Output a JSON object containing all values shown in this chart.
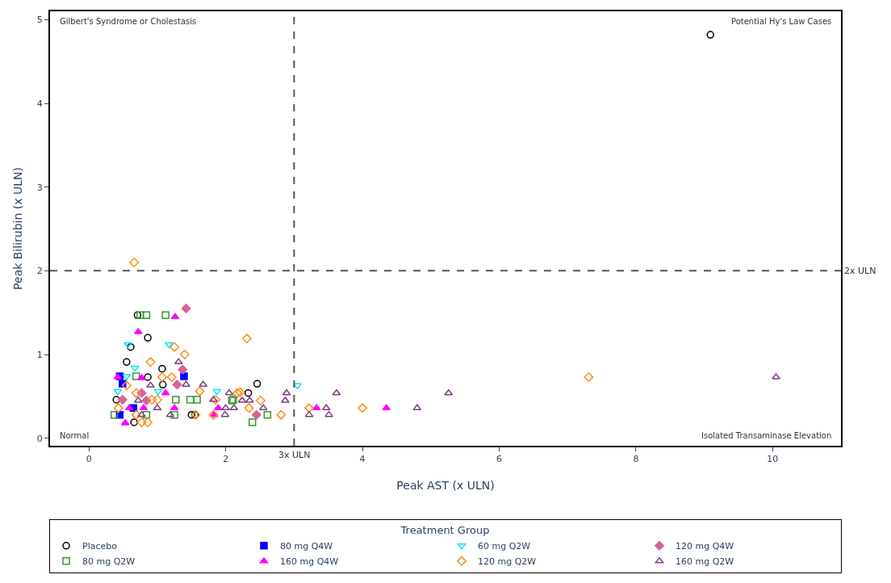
{
  "chart_data": {
    "type": "scatter",
    "xlabel": "Peak AST (x ULN)",
    "ylabel": "Peak Bilirubin (x ULN)",
    "legend_title": "Treatment Group",
    "xlim": [
      -0.57,
      11.0
    ],
    "xticks": [
      0,
      2,
      4,
      6,
      8,
      10
    ],
    "ylim": [
      -0.09,
      5.1
    ],
    "yticks": [
      0,
      1,
      2,
      3,
      4,
      5
    ],
    "legend": "bottom",
    "ref_lines": [
      {
        "axis": "x",
        "value": 3,
        "label": "3x ULN",
        "color": "#555555",
        "line_style": "dashed"
      },
      {
        "axis": "y",
        "value": 2,
        "label": "2x ULN",
        "color": "#555555",
        "line_style": "dashed"
      }
    ],
    "annotations": [
      "Gilbert's Syndrome or Cholestasis",
      "Potential Hy's Law Cases",
      "Normal",
      "Isolated Transaminase Elevation"
    ],
    "series": [
      {
        "name": "Placebo",
        "color": "#000000",
        "marker": "circle-open",
        "x": [
          9.09,
          0.71,
          0.86,
          0.61,
          0.55,
          1.07,
          0.86,
          1.08,
          0.4,
          1.5,
          0.66,
          2.46,
          2.33,
          1.55
        ],
        "values": [
          4.82,
          1.47,
          1.2,
          1.09,
          0.91,
          0.83,
          0.73,
          0.64,
          0.46,
          0.28,
          0.19,
          0.65,
          0.54,
          0.28
        ]
      },
      {
        "name": "80 mg Q4W",
        "color": "#0000ff",
        "marker": "square",
        "x": [
          1.39,
          0.49,
          0.45,
          0.45,
          0.65
        ],
        "values": [
          0.74,
          0.65,
          0.74,
          0.28,
          0.36
        ]
      },
      {
        "name": "60 mg Q2W",
        "color": "#00e5ee",
        "marker": "triangle-down-open",
        "x": [
          0.57,
          1.17,
          0.67,
          0.42,
          1.87,
          1.01,
          0.55,
          3.05
        ],
        "values": [
          1.12,
          1.12,
          0.84,
          0.56,
          0.56,
          0.56,
          0.74,
          0.63
        ]
      },
      {
        "name": "120 mg Q4W",
        "color": "#d9619a",
        "marker": "diamond",
        "x": [
          1.42,
          1.37,
          1.29,
          0.49,
          0.84,
          2.45,
          0.77
        ],
        "values": [
          1.55,
          0.82,
          0.64,
          0.46,
          0.45,
          0.28,
          0.54
        ]
      },
      {
        "name": "80 mg Q2W",
        "color": "#339933",
        "marker": "square-open",
        "x": [
          0.75,
          0.84,
          1.12,
          0.69,
          1.48,
          1.58,
          2.11,
          0.37,
          1.25,
          2.09,
          2.39,
          2.61,
          0.84,
          1.27
        ],
        "values": [
          1.47,
          1.47,
          1.47,
          0.74,
          0.46,
          0.46,
          0.46,
          0.28,
          0.28,
          0.45,
          0.19,
          0.28,
          0.28,
          0.46
        ]
      },
      {
        "name": "160 mg Q4W",
        "color": "#ff00ff",
        "marker": "triangle-up",
        "x": [
          1.26,
          0.72,
          0.42,
          0.77,
          1.12,
          0.53,
          0.8,
          1.25,
          1.83,
          1.89,
          0.59,
          3.33,
          4.35
        ],
        "values": [
          1.45,
          1.27,
          0.73,
          0.72,
          0.54,
          0.18,
          0.36,
          0.36,
          0.28,
          0.36,
          0.36,
          0.36,
          0.36
        ]
      },
      {
        "name": "120 mg Q2W",
        "color": "#ff8c1a",
        "marker": "diamond-open",
        "x": [
          0.66,
          2.31,
          1.25,
          1.4,
          0.9,
          1.07,
          1.21,
          0.55,
          0.69,
          1.62,
          2.17,
          1.85,
          0.43,
          1.0,
          0.92,
          0.69,
          0.86,
          1.56,
          0.77,
          1.82,
          2.21,
          2.51,
          2.34,
          2.81,
          3.22,
          4.0,
          7.31
        ],
        "values": [
          2.1,
          1.19,
          1.09,
          1.0,
          0.91,
          0.73,
          0.73,
          0.63,
          0.54,
          0.56,
          0.54,
          0.46,
          0.36,
          0.46,
          0.46,
          0.28,
          0.19,
          0.28,
          0.19,
          0.28,
          0.55,
          0.45,
          0.36,
          0.28,
          0.36,
          0.36,
          0.73
        ]
      },
      {
        "name": "160 mg Q2W",
        "color": "#7b3f7f",
        "marker": "triangle-up-open",
        "x": [
          1.31,
          1.42,
          1.67,
          2.05,
          1.82,
          2.0,
          0.72,
          0.9,
          1.0,
          1.19,
          1.99,
          0.77,
          2.24,
          2.35,
          2.55,
          2.89,
          2.87,
          3.62,
          3.22,
          3.47,
          3.51,
          4.8,
          5.26,
          10.05,
          2.12
        ],
        "values": [
          0.91,
          0.64,
          0.64,
          0.54,
          0.46,
          0.36,
          0.45,
          0.63,
          0.36,
          0.28,
          0.28,
          0.28,
          0.45,
          0.45,
          0.36,
          0.54,
          0.45,
          0.54,
          0.28,
          0.36,
          0.28,
          0.36,
          0.54,
          0.73,
          0.36
        ]
      }
    ]
  }
}
